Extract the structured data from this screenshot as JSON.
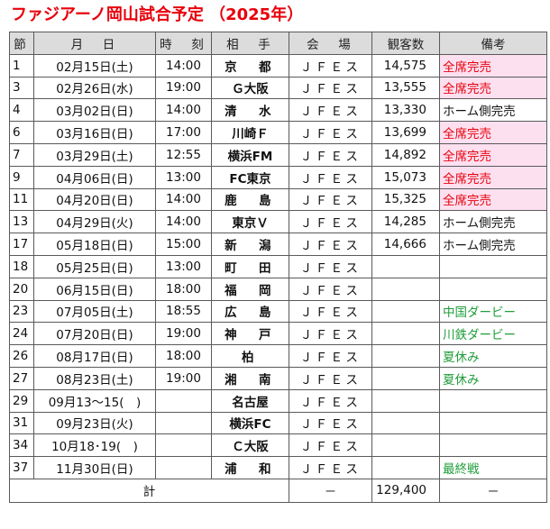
{
  "title": "ファジアーノ岡山試合予定 （2025年）",
  "colors": {
    "title": "#e8000b",
    "sold_out_bg": "#fde0f0",
    "sold_out_text": "#e8000b",
    "green_note": "#1f9e3a",
    "header_bg": "#dcdcdc"
  },
  "headers": {
    "sec": "節",
    "date": "月　日",
    "time": "時　刻",
    "opp": "相　手",
    "venue": "会　場",
    "att": "観客数",
    "note": "備考"
  },
  "rows": [
    {
      "sec": "1",
      "date": "02月15日(土)",
      "time": "14:00",
      "opp": "京　都",
      "venue": "ＪＦＥス",
      "att": "14,575",
      "note": "全席完売",
      "note_type": "pink"
    },
    {
      "sec": "3",
      "date": "02月26日(水)",
      "time": "19:00",
      "opp": "Ｇ大阪",
      "venue": "ＪＦＥス",
      "att": "13,555",
      "note": "全席完売",
      "note_type": "pink"
    },
    {
      "sec": "4",
      "date": "03月02日(日)",
      "time": "14:00",
      "opp": "清　水",
      "venue": "ＪＦＥス",
      "att": "13,330",
      "note": "ホーム側完売",
      "note_type": "black"
    },
    {
      "sec": "6",
      "date": "03月16日(日)",
      "time": "17:00",
      "opp": "川崎Ｆ",
      "venue": "ＪＦＥス",
      "att": "13,699",
      "note": "全席完売",
      "note_type": "pink"
    },
    {
      "sec": "7",
      "date": "03月29日(土)",
      "time": "12:55",
      "opp": "横浜FM",
      "venue": "ＪＦＥス",
      "att": "14,892",
      "note": "全席完売",
      "note_type": "pink"
    },
    {
      "sec": "9",
      "date": "04月06日(日)",
      "time": "13:00",
      "opp": "FC東京",
      "venue": "ＪＦＥス",
      "att": "15,073",
      "note": "全席完売",
      "note_type": "pink"
    },
    {
      "sec": "11",
      "date": "04月20日(日)",
      "time": "14:00",
      "opp": "鹿　島",
      "venue": "ＪＦＥス",
      "att": "15,325",
      "note": "全席完売",
      "note_type": "pink"
    },
    {
      "sec": "13",
      "date": "04月29日(火)",
      "time": "14:00",
      "opp": "東京Ｖ",
      "venue": "ＪＦＥス",
      "att": "14,285",
      "note": "ホーム側完売",
      "note_type": "black"
    },
    {
      "sec": "17",
      "date": "05月18日(日)",
      "time": "15:00",
      "opp": "新　潟",
      "venue": "ＪＦＥス",
      "att": "14,666",
      "note": "ホーム側完売",
      "note_type": "black"
    },
    {
      "sec": "18",
      "date": "05月25日(日)",
      "time": "13:00",
      "opp": "町　田",
      "venue": "ＪＦＥス",
      "att": "",
      "note": "",
      "note_type": "black"
    },
    {
      "sec": "20",
      "date": "06月15日(日)",
      "time": "18:00",
      "opp": "福　岡",
      "venue": "ＪＦＥス",
      "att": "",
      "note": "",
      "note_type": "black"
    },
    {
      "sec": "23",
      "date": "07月05日(土)",
      "time": "18:55",
      "opp": "広　島",
      "venue": "ＪＦＥス",
      "att": "",
      "note": "中国ダービー",
      "note_type": "green"
    },
    {
      "sec": "24",
      "date": "07月20日(日)",
      "time": "19:00",
      "opp": "神　戸",
      "venue": "ＪＦＥス",
      "att": "",
      "note": "川鉄ダービー",
      "note_type": "green"
    },
    {
      "sec": "26",
      "date": "08月17日(日)",
      "time": "18:00",
      "opp": "柏",
      "venue": "ＪＦＥス",
      "att": "",
      "note": "夏休み",
      "note_type": "green"
    },
    {
      "sec": "27",
      "date": "08月23日(土)",
      "time": "19:00",
      "opp": "湘　南",
      "venue": "ＪＦＥス",
      "att": "",
      "note": "夏休み",
      "note_type": "green"
    },
    {
      "sec": "29",
      "date": "09月13～15(　)",
      "time": "",
      "opp": "名古屋",
      "venue": "ＪＦＥス",
      "att": "",
      "note": "",
      "note_type": "black"
    },
    {
      "sec": "31",
      "date": "09月23日(火)",
      "time": "",
      "opp": "横浜FC",
      "venue": "ＪＦＥス",
      "att": "",
      "note": "",
      "note_type": "black"
    },
    {
      "sec": "34",
      "date": "10月18･19(　)",
      "time": "",
      "opp": "Ｃ大阪",
      "venue": "ＪＦＥス",
      "att": "",
      "note": "",
      "note_type": "black"
    },
    {
      "sec": "37",
      "date": "11月30日(日)",
      "time": "",
      "opp": "浦　和",
      "venue": "ＪＦＥス",
      "att": "",
      "note": "最終戦",
      "note_type": "green"
    }
  ],
  "total": {
    "label": "計",
    "venue": "－",
    "att": "129,400",
    "note": "－"
  }
}
